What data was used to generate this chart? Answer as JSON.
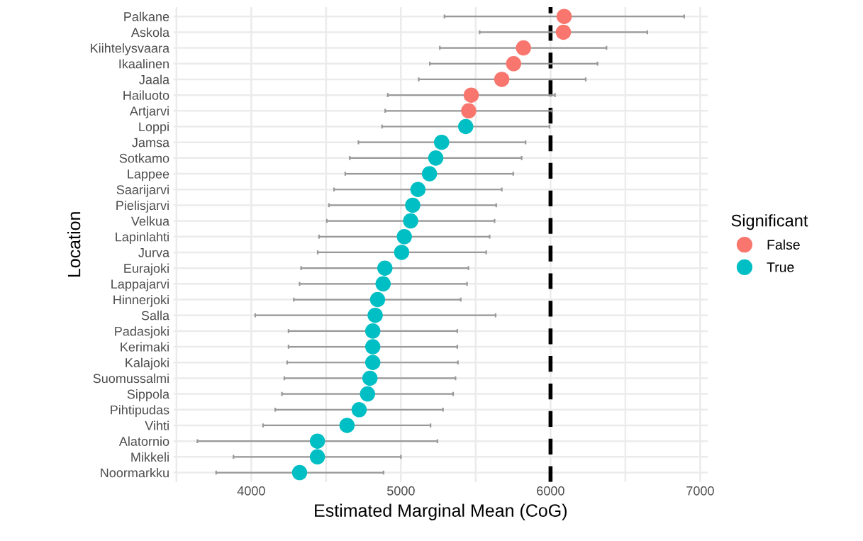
{
  "chart_data": {
    "type": "scatter",
    "orientation": "horizontal",
    "xlabel": "Estimated Marginal Mean (CoG)",
    "ylabel": "Location",
    "legend_title": "Significant",
    "legend": "right",
    "categories": [
      "Palkane",
      "Askola",
      "Kiihtelysvaara",
      "Ikaalinen",
      "Jaala",
      "Hailuoto",
      "Artjarvi",
      "Loppi",
      "Jamsa",
      "Sotkamo",
      "Lappee",
      "Saarijarvi",
      "Pielisjarvi",
      "Velkua",
      "Lapinlahti",
      "Jurva",
      "Eurajoki",
      "Lappajarvi",
      "Hinnerjoki",
      "Salla",
      "Padasjoki",
      "Kerimaki",
      "Kalajoki",
      "Suomussalmi",
      "Sippola",
      "Pihtipudas",
      "Vihti",
      "Alatornio",
      "Mikkeli",
      "Noormarkku"
    ],
    "xlim": [
      3480,
      7050
    ],
    "xticks": [
      {
        "value": 3500,
        "label": null
      },
      4000,
      {
        "value": 4500,
        "label": null
      },
      5000,
      {
        "value": 5500,
        "label": null
      },
      6000,
      {
        "value": 6500,
        "label": null
      },
      7000
    ],
    "grid": true,
    "marker": "circle",
    "ref_lines": [
      {
        "axis": "x",
        "value": 6000,
        "color": "#000000",
        "line_style": "dashed"
      }
    ],
    "series": [
      {
        "name": "False",
        "color": "#f8766d",
        "values": [
          6091,
          6086,
          5819,
          5753,
          5674,
          5470,
          5453,
          null,
          null,
          null,
          null,
          null,
          null,
          null,
          null,
          null,
          null,
          null,
          null,
          null,
          null,
          null,
          null,
          null,
          null,
          null,
          null,
          null,
          null,
          null
        ],
        "errors": [
          [
            5291,
            6893
          ],
          [
            5526,
            6647
          ],
          [
            5260,
            6374
          ],
          [
            5193,
            6314
          ],
          [
            5119,
            6235
          ],
          [
            4912,
            6030
          ],
          [
            4895,
            6012
          ],
          null,
          null,
          null,
          null,
          null,
          null,
          null,
          null,
          null,
          null,
          null,
          null,
          null,
          null,
          null,
          null,
          null,
          null,
          null,
          null,
          null,
          null,
          null
        ]
      },
      {
        "name": "True",
        "color": "#00bfc4",
        "values": [
          null,
          null,
          null,
          null,
          null,
          null,
          null,
          5433,
          5272,
          5233,
          5191,
          5114,
          5079,
          5065,
          5023,
          5005,
          4893,
          4881,
          4844,
          4828,
          4812,
          4812,
          4812,
          4793,
          4777,
          4721,
          4640,
          4442,
          4442,
          4323
        ],
        "errors": [
          null,
          null,
          null,
          null,
          null,
          null,
          null,
          [
            4874,
            5993
          ],
          [
            4716,
            5833
          ],
          [
            4658,
            5807
          ],
          [
            4628,
            5751
          ],
          [
            4553,
            5674
          ],
          [
            4519,
            5637
          ],
          [
            4505,
            5626
          ],
          [
            4453,
            5593
          ],
          [
            4444,
            5570
          ],
          [
            4333,
            5451
          ],
          [
            4323,
            5442
          ],
          [
            4284,
            5400
          ],
          [
            4026,
            5633
          ],
          [
            4249,
            5377
          ],
          [
            4249,
            5377
          ],
          [
            4240,
            5381
          ],
          [
            4221,
            5365
          ],
          [
            4205,
            5349
          ],
          [
            4160,
            5281
          ],
          [
            4079,
            5198
          ],
          [
            3640,
            5244
          ],
          [
            3881,
            5000
          ],
          [
            3765,
            4884
          ]
        ]
      }
    ]
  }
}
